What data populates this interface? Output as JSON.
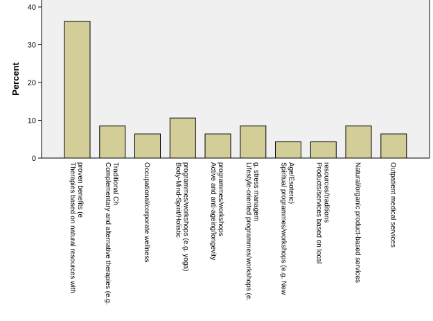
{
  "chart_data": {
    "type": "bar",
    "title": "",
    "xlabel": "",
    "ylabel": "Percent",
    "ylim": [
      0,
      40
    ],
    "yticks": [
      0,
      10,
      20,
      30,
      40
    ],
    "categories": [
      [
        "Therapies based on natural resources with",
        "proven benefits (e"
      ],
      [
        "Complementary and alternative therapies (e.g.",
        "Traditional Ch"
      ],
      [
        "Occupational/corporate wellness"
      ],
      [
        "Body-Mind-Spirit/Holistic",
        "programmes/workshops (e.g. yoga)"
      ],
      [
        "Active and anti-ageing/longevity",
        "programmes/workshops"
      ],
      [
        "Lifestyle-oriented programmes/workshops (e.",
        "g. stress managem"
      ],
      [
        "Spiritual programmes/workshops (e.g. New",
        "Age/Esoteric)"
      ],
      [
        "Products/services based on local",
        "resources/traditions"
      ],
      [
        "Natural/organic product-based services"
      ],
      [
        "Outpatient medical services"
      ]
    ],
    "values": [
      36.2,
      8.5,
      6.4,
      10.6,
      6.4,
      8.5,
      4.3,
      4.3,
      8.5,
      6.4
    ],
    "colors": {
      "bar_fill": "#d3ce98",
      "bar_stroke": "#000000",
      "plot_background": "#f0f0f0",
      "axis": "#000000"
    }
  }
}
